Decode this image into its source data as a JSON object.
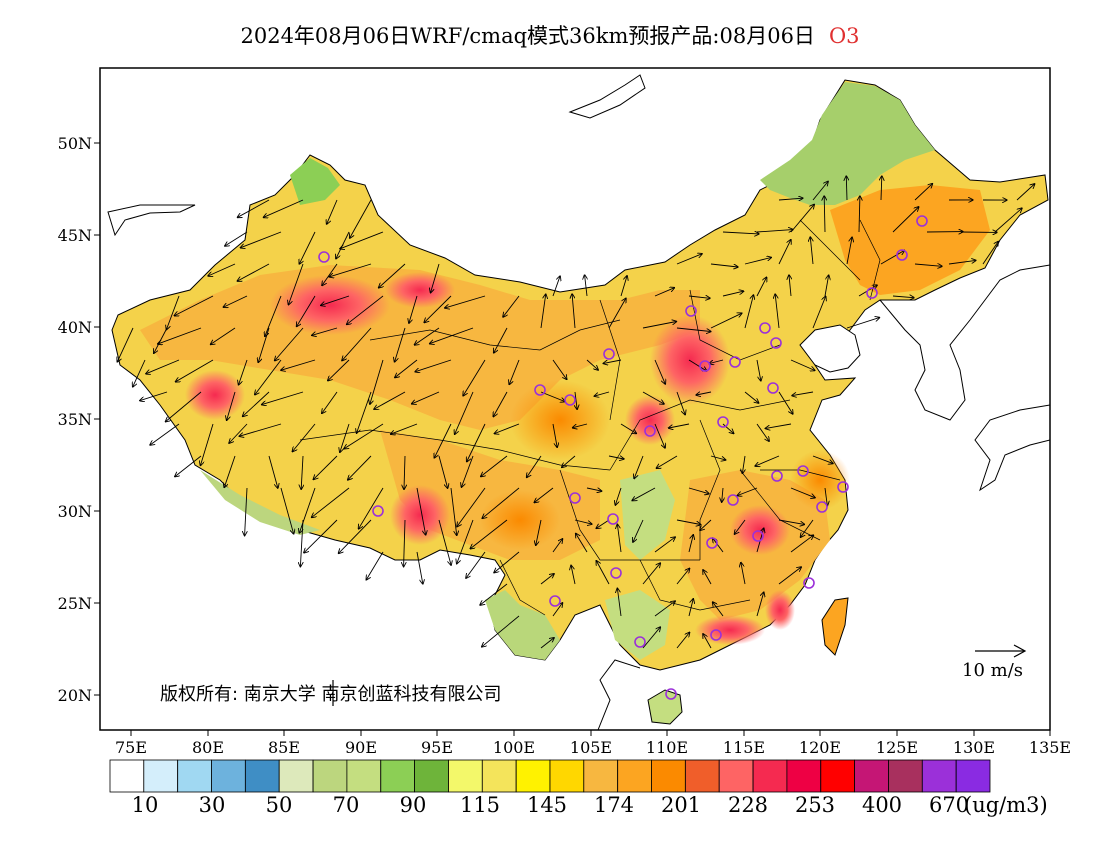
{
  "title": {
    "main": "2024年08月06日WRF/cmaq模式36km预报产品:08月06日",
    "species": "O3"
  },
  "map": {
    "lat_labels": [
      "50N",
      "45N",
      "40N",
      "35N",
      "30N",
      "25N",
      "20N"
    ],
    "lon_labels": [
      "75E",
      "80E",
      "85E",
      "90E",
      "95E",
      "100E",
      "105E",
      "110E",
      "115E",
      "120E",
      "125E",
      "130E",
      "135E"
    ],
    "copyright": "版权所有: 南京大学 南京创蓝科技有限公司",
    "wind_reference": "10 m/s",
    "colors": {
      "frame": "#000000",
      "station_marker": "#9b30d9",
      "sea": "#ffffff"
    }
  },
  "colorbar": {
    "colors": [
      "#ffffff",
      "#d4eefb",
      "#a0d8f2",
      "#6db2dd",
      "#3f8ec5",
      "#dde9bb",
      "#bcd67e",
      "#c4de80",
      "#8ccf55",
      "#6eb43a",
      "#f3f86a",
      "#f4e45b",
      "#fff200",
      "#ffd700",
      "#f7b740",
      "#fca521",
      "#fb8a00",
      "#f05e2a",
      "#fe6464",
      "#f52a50",
      "#ee0044",
      "#ff0000",
      "#c51675",
      "#a8305e",
      "#9b30d9",
      "#8a2be2"
    ],
    "labels": [
      "10",
      "30",
      "50",
      "70",
      "90",
      "115",
      "145",
      "174",
      "201",
      "228",
      "253",
      "400",
      "670"
    ],
    "unit": "(ug/m3)"
  }
}
